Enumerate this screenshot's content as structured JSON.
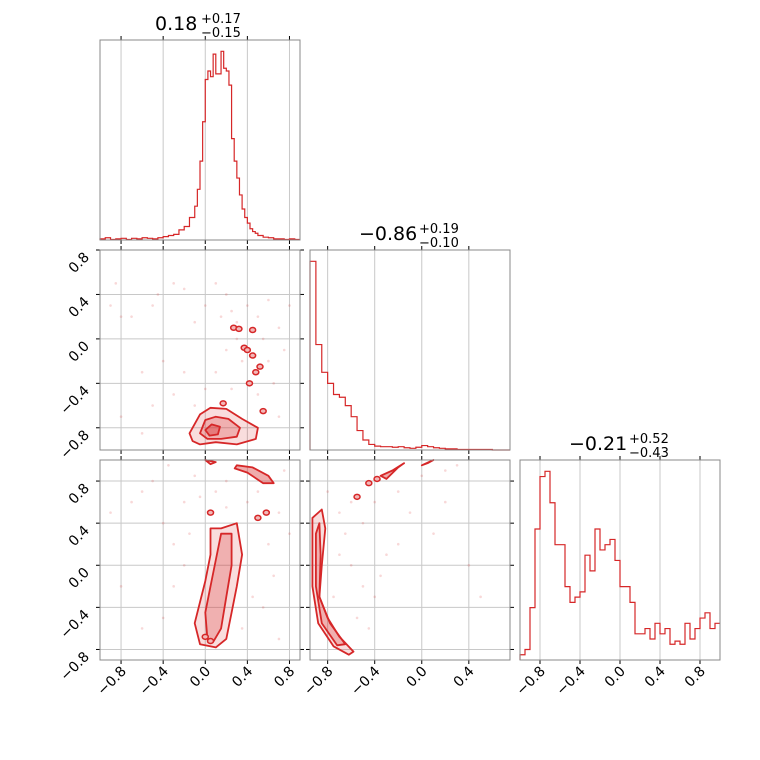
{
  "colors": {
    "line": "#d62728",
    "fill": "#f2b8b8",
    "grid": "#c8c8c8",
    "frame": "#888888"
  },
  "chart_data": {
    "type": "corner",
    "ticks": [
      -0.8,
      -0.4,
      0.0,
      0.4,
      0.8
    ],
    "tick_labels": [
      "−0.8",
      "−0.4",
      "0.0",
      "0.4",
      "0.8"
    ],
    "grid": true,
    "panels": [
      {
        "id": "hist-p1",
        "type": "step-histogram",
        "title": {
          "main": "0.18",
          "plus": "+0.17",
          "minus": "−0.15"
        },
        "xlim": [
          -1.0,
          0.9
        ],
        "edges": [
          -1.0,
          -0.95,
          -0.9,
          -0.85,
          -0.8,
          -0.75,
          -0.7,
          -0.65,
          -0.6,
          -0.55,
          -0.5,
          -0.45,
          -0.4,
          -0.35,
          -0.3,
          -0.25,
          -0.2,
          -0.15,
          -0.1,
          -0.075,
          -0.05,
          -0.025,
          0.0,
          0.025,
          0.05,
          0.075,
          0.1,
          0.125,
          0.15,
          0.175,
          0.2,
          0.225,
          0.25,
          0.275,
          0.3,
          0.325,
          0.35,
          0.375,
          0.4,
          0.425,
          0.45,
          0.475,
          0.5,
          0.55,
          0.6,
          0.65,
          0.7,
          0.75,
          0.8,
          0.85,
          0.9
        ],
        "counts": [
          0.2,
          0.4,
          0.1,
          0.2,
          0.3,
          0.1,
          0.3,
          0.2,
          0.4,
          0.3,
          0.2,
          0.4,
          0.6,
          0.8,
          1.0,
          1.8,
          2.4,
          4.0,
          6.0,
          9.0,
          14.0,
          21.0,
          28.5,
          30.0,
          29.0,
          33.0,
          29.5,
          29.5,
          33.5,
          30.5,
          30.0,
          27.5,
          18.0,
          14.0,
          11.0,
          8.0,
          5.5,
          4.0,
          3.0,
          2.0,
          1.5,
          1.2,
          0.8,
          0.5,
          0.4,
          0.2,
          0.2,
          0.1,
          0.2,
          0.1
        ]
      },
      {
        "id": "hist-p2",
        "type": "step-histogram",
        "title": {
          "main": "−0.86",
          "plus": "+0.19",
          "minus": "−0.10"
        },
        "xlim": [
          -0.95,
          0.75
        ],
        "edges": [
          -0.95,
          -0.9,
          -0.85,
          -0.8,
          -0.75,
          -0.7,
          -0.65,
          -0.6,
          -0.55,
          -0.5,
          -0.45,
          -0.4,
          -0.35,
          -0.3,
          -0.25,
          -0.2,
          -0.15,
          -0.1,
          -0.05,
          0.0,
          0.05,
          0.1,
          0.15,
          0.2,
          0.3,
          0.4,
          0.5,
          0.6,
          0.75
        ],
        "counts": [
          3.4,
          1.9,
          1.4,
          1.2,
          1.0,
          0.95,
          0.8,
          0.6,
          0.35,
          0.18,
          0.1,
          0.07,
          0.06,
          0.06,
          0.05,
          0.06,
          0.04,
          0.03,
          0.05,
          0.08,
          0.06,
          0.04,
          0.03,
          0.02,
          0.01,
          0.01,
          0.01,
          0.0
        ]
      },
      {
        "id": "hist-p3",
        "type": "step-histogram",
        "title": {
          "main": "−0.21",
          "plus": "+0.52",
          "minus": "−0.43"
        },
        "xlim": [
          -1.0,
          1.0
        ],
        "edges": [
          -1.0,
          -0.95,
          -0.9,
          -0.85,
          -0.8,
          -0.75,
          -0.7,
          -0.65,
          -0.6,
          -0.55,
          -0.5,
          -0.45,
          -0.4,
          -0.35,
          -0.3,
          -0.25,
          -0.2,
          -0.15,
          -0.1,
          -0.05,
          0.0,
          0.05,
          0.1,
          0.15,
          0.2,
          0.25,
          0.3,
          0.35,
          0.4,
          0.45,
          0.5,
          0.55,
          0.6,
          0.65,
          0.7,
          0.75,
          0.8,
          0.85,
          0.9,
          0.95,
          1.0
        ],
        "counts": [
          0.5,
          1.0,
          5.0,
          12.5,
          17.5,
          18.0,
          15.0,
          11.0,
          11.0,
          7.0,
          5.5,
          6.0,
          6.5,
          10.0,
          8.5,
          12.5,
          10.5,
          11.0,
          11.5,
          9.5,
          7.0,
          7.0,
          5.5,
          2.5,
          2.5,
          3.0,
          2.0,
          3.5,
          2.5,
          3.0,
          1.5,
          1.8,
          1.5,
          3.5,
          2.0,
          3.0,
          4.0,
          4.5,
          3.0,
          3.5
        ]
      },
      {
        "id": "scatter-p1-p2",
        "type": "contour-scatter",
        "xlim": [
          -1.0,
          0.9
        ],
        "ylim": [
          -1.0,
          0.8
        ],
        "contours": [
          [
            [
              -0.15,
              -0.85
            ],
            [
              -0.05,
              -0.68
            ],
            [
              0.05,
              -0.62
            ],
            [
              0.2,
              -0.63
            ],
            [
              0.35,
              -0.72
            ],
            [
              0.5,
              -0.8
            ],
            [
              0.48,
              -0.9
            ],
            [
              0.3,
              -0.95
            ],
            [
              0.1,
              -0.93
            ],
            [
              -0.05,
              -0.95
            ],
            [
              -0.12,
              -0.92
            ]
          ],
          [
            [
              -0.05,
              -0.85
            ],
            [
              0.0,
              -0.73
            ],
            [
              0.1,
              -0.7
            ],
            [
              0.22,
              -0.72
            ],
            [
              0.33,
              -0.8
            ],
            [
              0.3,
              -0.88
            ],
            [
              0.15,
              -0.9
            ],
            [
              0.02,
              -0.9
            ]
          ],
          [
            [
              0.0,
              -0.82
            ],
            [
              0.06,
              -0.77
            ],
            [
              0.14,
              -0.79
            ],
            [
              0.12,
              -0.86
            ],
            [
              0.04,
              -0.87
            ]
          ]
        ],
        "islands": [
          [
            0.27,
            0.1
          ],
          [
            0.32,
            0.09
          ],
          [
            0.45,
            0.08
          ],
          [
            0.37,
            -0.08
          ],
          [
            0.4,
            -0.1
          ],
          [
            0.45,
            -0.15
          ],
          [
            0.52,
            -0.25
          ],
          [
            0.48,
            -0.3
          ],
          [
            0.42,
            -0.4
          ],
          [
            0.55,
            -0.65
          ],
          [
            0.17,
            -0.58
          ]
        ],
        "points": [
          [
            -0.9,
            0.3
          ],
          [
            -0.85,
            0.5
          ],
          [
            -0.8,
            0.2
          ],
          [
            -0.7,
            0.2
          ],
          [
            -0.6,
            -0.3
          ],
          [
            -0.5,
            0.3
          ],
          [
            -0.45,
            0.4
          ],
          [
            -0.3,
            0.5
          ],
          [
            -0.2,
            0.45
          ],
          [
            -0.1,
            0.15
          ],
          [
            0.0,
            0.3
          ],
          [
            0.1,
            0.5
          ],
          [
            0.15,
            0.2
          ],
          [
            0.2,
            0.4
          ],
          [
            0.25,
            0.25
          ],
          [
            0.3,
            0.15
          ],
          [
            0.5,
            0.2
          ],
          [
            0.6,
            0.35
          ],
          [
            0.7,
            0.1
          ],
          [
            0.8,
            0.3
          ],
          [
            0.75,
            -0.1
          ],
          [
            0.6,
            -0.2
          ],
          [
            0.5,
            -0.5
          ],
          [
            0.65,
            -0.4
          ],
          [
            0.7,
            -0.7
          ],
          [
            -0.3,
            -0.5
          ],
          [
            -0.4,
            -0.2
          ],
          [
            -0.2,
            -0.3
          ],
          [
            0.0,
            -0.45
          ],
          [
            0.1,
            -0.3
          ],
          [
            0.2,
            -0.1
          ],
          [
            -0.8,
            -0.7
          ],
          [
            -0.6,
            -0.85
          ],
          [
            -0.5,
            -0.6
          ],
          [
            0.3,
            0.0
          ],
          [
            0.35,
            -0.2
          ],
          [
            0.4,
            0.3
          ],
          [
            0.55,
            0.0
          ],
          [
            -0.1,
            -0.6
          ],
          [
            0.25,
            -0.45
          ]
        ]
      },
      {
        "id": "scatter-p1-p3",
        "type": "contour-scatter",
        "xlim": [
          -1.0,
          0.9
        ],
        "ylim": [
          -0.9,
          1.0
        ],
        "contours": [
          [
            [
              -0.05,
              -0.75
            ],
            [
              -0.1,
              -0.55
            ],
            [
              -0.05,
              -0.35
            ],
            [
              0.0,
              -0.15
            ],
            [
              0.05,
              0.1
            ],
            [
              0.05,
              0.35
            ],
            [
              0.15,
              0.35
            ],
            [
              0.3,
              0.4
            ],
            [
              0.35,
              0.1
            ],
            [
              0.3,
              -0.2
            ],
            [
              0.25,
              -0.45
            ],
            [
              0.2,
              -0.7
            ],
            [
              0.1,
              -0.78
            ]
          ],
          [
            [
              0.02,
              -0.7
            ],
            [
              0.0,
              -0.45
            ],
            [
              0.05,
              -0.2
            ],
            [
              0.1,
              0.05
            ],
            [
              0.15,
              0.3
            ],
            [
              0.25,
              0.3
            ],
            [
              0.25,
              0.0
            ],
            [
              0.2,
              -0.3
            ],
            [
              0.15,
              -0.6
            ],
            [
              0.08,
              -0.72
            ]
          ],
          [
            [
              0.3,
              0.95
            ],
            [
              0.45,
              0.93
            ],
            [
              0.6,
              0.85
            ],
            [
              0.65,
              0.78
            ],
            [
              0.55,
              0.78
            ],
            [
              0.4,
              0.88
            ],
            [
              0.28,
              0.92
            ]
          ],
          [
            [
              0.0,
              1.0
            ],
            [
              0.1,
              0.98
            ],
            [
              0.05,
              0.96
            ]
          ]
        ],
        "islands": [
          [
            0.0,
            -0.68
          ],
          [
            0.05,
            -0.72
          ],
          [
            0.5,
            0.45
          ],
          [
            0.58,
            0.5
          ],
          [
            0.05,
            0.5
          ]
        ],
        "points": [
          [
            -0.9,
            0.5
          ],
          [
            -0.7,
            0.6
          ],
          [
            -0.6,
            0.7
          ],
          [
            -0.5,
            0.8
          ],
          [
            -0.4,
            0.4
          ],
          [
            -0.3,
            0.2
          ],
          [
            -0.2,
            0.6
          ],
          [
            -0.1,
            0.85
          ],
          [
            0.1,
            0.7
          ],
          [
            0.2,
            0.8
          ],
          [
            0.5,
            0.7
          ],
          [
            0.6,
            0.2
          ],
          [
            0.7,
            0.5
          ],
          [
            0.8,
            0.3
          ],
          [
            0.65,
            -0.1
          ],
          [
            0.55,
            -0.4
          ],
          [
            0.7,
            -0.7
          ],
          [
            -0.4,
            -0.5
          ],
          [
            -0.3,
            -0.2
          ],
          [
            -0.2,
            0.0
          ],
          [
            -0.15,
            0.3
          ],
          [
            -0.8,
            -0.2
          ],
          [
            -0.6,
            -0.6
          ],
          [
            0.4,
            0.6
          ],
          [
            0.45,
            -0.3
          ],
          [
            0.35,
            -0.6
          ],
          [
            0.2,
            0.55
          ],
          [
            -0.05,
            0.65
          ],
          [
            0.75,
            0.9
          ],
          [
            -0.35,
            0.95
          ]
        ]
      },
      {
        "id": "scatter-p2-p3",
        "type": "contour-scatter",
        "xlim": [
          -0.95,
          0.75
        ],
        "ylim": [
          -0.9,
          1.0
        ],
        "contours": [
          [
            [
              -0.93,
              0.45
            ],
            [
              -0.85,
              0.53
            ],
            [
              -0.82,
              0.35
            ],
            [
              -0.85,
              0.0
            ],
            [
              -0.87,
              -0.3
            ],
            [
              -0.8,
              -0.5
            ],
            [
              -0.7,
              -0.68
            ],
            [
              -0.58,
              -0.82
            ],
            [
              -0.62,
              -0.85
            ],
            [
              -0.75,
              -0.77
            ],
            [
              -0.88,
              -0.55
            ],
            [
              -0.93,
              -0.2
            ]
          ],
          [
            [
              -0.9,
              0.3
            ],
            [
              -0.87,
              0.4
            ],
            [
              -0.86,
              0.1
            ],
            [
              -0.87,
              -0.3
            ],
            [
              -0.78,
              -0.55
            ],
            [
              -0.65,
              -0.75
            ],
            [
              -0.72,
              -0.76
            ],
            [
              -0.85,
              -0.55
            ],
            [
              -0.9,
              -0.2
            ]
          ],
          [
            [
              -0.35,
              0.85
            ],
            [
              -0.25,
              0.9
            ],
            [
              -0.15,
              0.97
            ],
            [
              -0.2,
              0.93
            ],
            [
              -0.3,
              0.82
            ]
          ],
          [
            [
              0.0,
              0.95
            ],
            [
              0.1,
              1.0
            ],
            [
              0.05,
              0.97
            ]
          ]
        ],
        "islands": [
          [
            -0.45,
            0.78
          ],
          [
            -0.38,
            0.82
          ],
          [
            -0.55,
            0.65
          ]
        ],
        "points": [
          [
            -0.7,
            0.5
          ],
          [
            -0.6,
            0.6
          ],
          [
            -0.5,
            0.4
          ],
          [
            -0.4,
            0.6
          ],
          [
            -0.2,
            0.7
          ],
          [
            0.0,
            0.85
          ],
          [
            0.2,
            0.9
          ],
          [
            0.3,
            0.95
          ],
          [
            -0.7,
            0.1
          ],
          [
            -0.6,
            0.0
          ],
          [
            -0.5,
            -0.2
          ],
          [
            -0.4,
            -0.3
          ],
          [
            -0.3,
            0.1
          ],
          [
            -0.2,
            0.2
          ],
          [
            0.1,
            0.3
          ],
          [
            0.4,
            0.0
          ],
          [
            0.5,
            -0.3
          ],
          [
            -0.1,
            0.5
          ],
          [
            -0.8,
            0.7
          ],
          [
            -0.65,
            0.3
          ],
          [
            -0.55,
            -0.5
          ],
          [
            -0.45,
            -0.6
          ],
          [
            -0.35,
            -0.1
          ],
          [
            0.2,
            0.6
          ],
          [
            -0.75,
            -0.3
          ]
        ]
      }
    ]
  }
}
